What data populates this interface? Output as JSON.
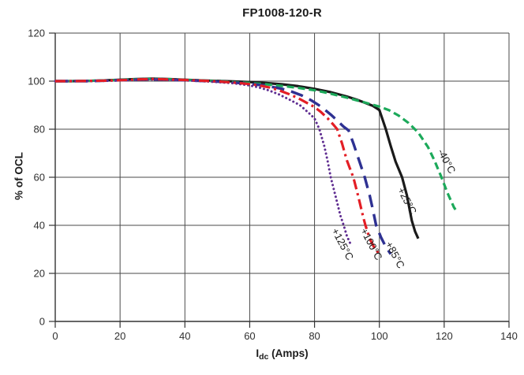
{
  "title": "FP1008-120-R",
  "colors": {
    "grid": "#4a4a4a",
    "axis": "#333333",
    "tick_text": "#2f2f2f",
    "label_text": "#1c1c1c"
  },
  "chart_data": {
    "type": "line",
    "title": "FP1008-120-R",
    "xlabel": {
      "base": "I",
      "sub": "dc",
      "rest": " (Amps)"
    },
    "ylabel": "% of OCL",
    "xlim": [
      0,
      140
    ],
    "ylim": [
      0,
      120
    ],
    "xticks": [
      0,
      20,
      40,
      60,
      80,
      100,
      120,
      140
    ],
    "yticks": [
      0,
      20,
      40,
      60,
      80,
      100,
      120
    ],
    "grid": true,
    "legend_position": "labels-on-curves",
    "series": [
      {
        "name": "-40°C",
        "color": "#1ca95a",
        "line_style": "dashed",
        "dash": "9 5",
        "width": 3.2,
        "label": {
          "x": 119.8,
          "y": 66,
          "angle": 62
        },
        "points": [
          [
            0,
            100
          ],
          [
            5,
            100
          ],
          [
            10,
            100.1
          ],
          [
            15,
            100.3
          ],
          [
            20,
            100.5
          ],
          [
            25,
            100.8
          ],
          [
            30,
            100.9
          ],
          [
            35,
            100.8
          ],
          [
            40,
            100.5
          ],
          [
            45,
            100.2
          ],
          [
            50,
            100
          ],
          [
            55,
            99.6
          ],
          [
            60,
            99.2
          ],
          [
            65,
            98.7
          ],
          [
            70,
            98
          ],
          [
            75,
            97.2
          ],
          [
            80,
            96.2
          ],
          [
            85,
            94.8
          ],
          [
            90,
            93.1
          ],
          [
            95,
            91.3
          ],
          [
            100,
            89.4
          ],
          [
            103,
            87.9
          ],
          [
            106,
            85.6
          ],
          [
            109,
            82.6
          ],
          [
            112,
            78.6
          ],
          [
            115,
            72.6
          ],
          [
            117,
            67
          ],
          [
            119,
            60.5
          ],
          [
            121,
            53.5
          ],
          [
            123,
            47.5
          ],
          [
            124,
            45.5
          ]
        ]
      },
      {
        "name": "+25°C",
        "color": "#1a1a1a",
        "line_style": "solid",
        "dash": null,
        "width": 3.2,
        "label": {
          "x": 107.6,
          "y": 49.5,
          "angle": 62
        },
        "points": [
          [
            0,
            100
          ],
          [
            5,
            100
          ],
          [
            10,
            100.1
          ],
          [
            15,
            100.3
          ],
          [
            20,
            100.6
          ],
          [
            25,
            100.9
          ],
          [
            30,
            101
          ],
          [
            35,
            100.9
          ],
          [
            40,
            100.6
          ],
          [
            45,
            100.3
          ],
          [
            50,
            100.1
          ],
          [
            55,
            99.9
          ],
          [
            60,
            99.6
          ],
          [
            65,
            99.2
          ],
          [
            70,
            98.7
          ],
          [
            75,
            97.9
          ],
          [
            80,
            96.8
          ],
          [
            85,
            95.4
          ],
          [
            90,
            93.6
          ],
          [
            93,
            92.3
          ],
          [
            96,
            90.8
          ],
          [
            98,
            89.7
          ],
          [
            100,
            88
          ],
          [
            101,
            84
          ],
          [
            102,
            80
          ],
          [
            103.5,
            73
          ],
          [
            105,
            66.5
          ],
          [
            107,
            60
          ],
          [
            108.5,
            52.5
          ],
          [
            110,
            42
          ],
          [
            111,
            37.5
          ],
          [
            112,
            34.5
          ]
        ]
      },
      {
        "name": "+85°C",
        "color": "#2e3192",
        "line_style": "long-dash",
        "dash": "16 9",
        "width": 3.4,
        "label": {
          "x": 103.9,
          "y": 27,
          "angle": 62
        },
        "points": [
          [
            0,
            100
          ],
          [
            5,
            100
          ],
          [
            10,
            100
          ],
          [
            15,
            100.2
          ],
          [
            20,
            100.4
          ],
          [
            25,
            100.6
          ],
          [
            30,
            100.7
          ],
          [
            35,
            100.6
          ],
          [
            40,
            100.4
          ],
          [
            45,
            100.1
          ],
          [
            50,
            99.8
          ],
          [
            55,
            99.4
          ],
          [
            60,
            98.9
          ],
          [
            65,
            98.1
          ],
          [
            70,
            96.8
          ],
          [
            73,
            95.6
          ],
          [
            76,
            94.1
          ],
          [
            79,
            92
          ],
          [
            82,
            89.4
          ],
          [
            85,
            86.1
          ],
          [
            87,
            83.6
          ],
          [
            89,
            81
          ],
          [
            90.5,
            79.5
          ],
          [
            92,
            74
          ],
          [
            93.5,
            68
          ],
          [
            95.5,
            60
          ],
          [
            97,
            52.5
          ],
          [
            98,
            46.5
          ],
          [
            99,
            40
          ],
          [
            100.5,
            35
          ],
          [
            102,
            31
          ],
          [
            103.5,
            28
          ]
        ]
      },
      {
        "name": "+100°C",
        "color": "#e31e25",
        "line_style": "dash-dot",
        "dash": "13 5 3 5",
        "width": 3.2,
        "label": {
          "x": 96.6,
          "y": 31.5,
          "angle": 62
        },
        "points": [
          [
            0,
            100
          ],
          [
            5,
            100
          ],
          [
            10,
            100.1
          ],
          [
            15,
            100.2
          ],
          [
            20,
            100.4
          ],
          [
            25,
            100.7
          ],
          [
            30,
            100.9
          ],
          [
            35,
            100.7
          ],
          [
            40,
            100.5
          ],
          [
            45,
            100.2
          ],
          [
            50,
            99.9
          ],
          [
            55,
            99.4
          ],
          [
            60,
            98.8
          ],
          [
            63,
            98.2
          ],
          [
            66,
            97.4
          ],
          [
            69,
            96.2
          ],
          [
            72,
            94.7
          ],
          [
            75,
            92.9
          ],
          [
            78,
            90.7
          ],
          [
            80,
            89.2
          ],
          [
            82,
            87.1
          ],
          [
            84,
            84.6
          ],
          [
            86,
            81.6
          ],
          [
            87,
            80
          ],
          [
            88.5,
            74
          ],
          [
            90,
            67
          ],
          [
            92,
            59.8
          ],
          [
            93.5,
            52
          ],
          [
            95,
            43.5
          ],
          [
            95.7,
            40
          ],
          [
            97,
            34.5
          ],
          [
            98.5,
            30.5
          ],
          [
            100,
            28
          ]
        ]
      },
      {
        "name": "+125°C",
        "color": "#5f2d91",
        "line_style": "dotted",
        "dash": "0.1 5",
        "width": 3,
        "label": {
          "x": 87.7,
          "y": 31.5,
          "angle": 62
        },
        "points": [
          [
            0,
            100
          ],
          [
            5,
            100
          ],
          [
            10,
            100
          ],
          [
            15,
            100.1
          ],
          [
            20,
            100.3
          ],
          [
            25,
            100.5
          ],
          [
            30,
            100.7
          ],
          [
            35,
            100.5
          ],
          [
            40,
            100.3
          ],
          [
            45,
            100
          ],
          [
            50,
            99.6
          ],
          [
            55,
            99.1
          ],
          [
            60,
            98.2
          ],
          [
            63,
            97.3
          ],
          [
            66,
            96.1
          ],
          [
            69,
            94.5
          ],
          [
            72,
            92.5
          ],
          [
            75.5,
            90
          ],
          [
            78,
            87
          ],
          [
            80,
            84.5
          ],
          [
            81.5,
            80
          ],
          [
            83,
            73
          ],
          [
            84,
            67
          ],
          [
            85,
            60
          ],
          [
            86.5,
            52
          ],
          [
            88,
            44
          ],
          [
            89,
            40
          ],
          [
            90,
            35.5
          ],
          [
            91,
            32.5
          ]
        ]
      }
    ]
  }
}
